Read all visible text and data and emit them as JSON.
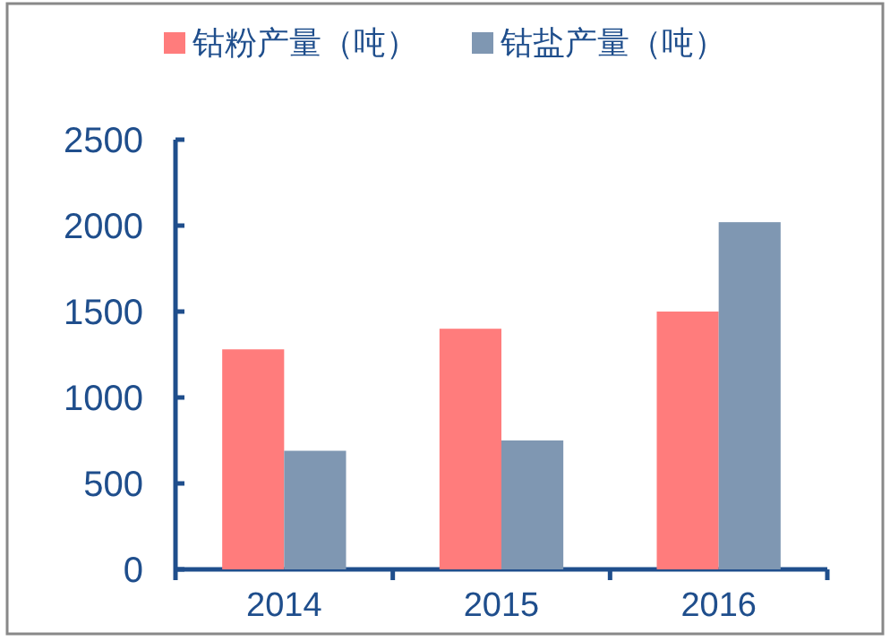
{
  "chart_data": {
    "type": "bar",
    "categories": [
      "2014",
      "2015",
      "2016"
    ],
    "series": [
      {
        "name": "钴粉产量（吨）",
        "color": "#ff7c7c",
        "values": [
          1280,
          1400,
          1500
        ]
      },
      {
        "name": "钴盐产量（吨）",
        "color": "#7f97b2",
        "values": [
          690,
          750,
          2020
        ]
      }
    ],
    "ylim": [
      0,
      2500
    ],
    "yticks": [
      0,
      500,
      1000,
      1500,
      2000,
      2500
    ],
    "legend": "top",
    "grid": false
  }
}
